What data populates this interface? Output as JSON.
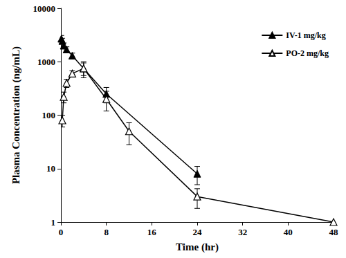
{
  "chart_data": {
    "type": "line",
    "x_label": "Time (hr)",
    "y_label": "Plasma Concentration (ng/mL)",
    "log": "y",
    "grid": false,
    "legend": "top-right",
    "xlim": [
      0,
      48
    ],
    "xticks": [
      0,
      8,
      16,
      24,
      32,
      40,
      48
    ],
    "ylim": [
      1,
      10000
    ],
    "yticks": [
      1,
      10,
      100,
      1000,
      10000
    ],
    "series": [
      {
        "name": "IV-1 mg/kg",
        "color": "#000000",
        "marker": "filled-triangle",
        "line_style": "solid",
        "x": [
          0.083,
          0.25,
          0.5,
          1,
          2,
          4,
          8,
          24
        ],
        "values": [
          2700,
          2450,
          2000,
          1700,
          1300,
          750,
          250,
          8
        ],
        "errors": [
          400,
          300,
          250,
          200,
          150,
          200,
          80,
          3
        ]
      },
      {
        "name": "PO-2 mg/kg",
        "color": "#000000",
        "marker": "open-triangle",
        "line_style": "solid",
        "x": [
          0.25,
          0.5,
          1,
          2,
          4,
          8,
          12,
          24,
          48
        ],
        "values": [
          80,
          220,
          400,
          600,
          750,
          200,
          50,
          3,
          1
        ],
        "errors": [
          20,
          50,
          70,
          80,
          250,
          80,
          22,
          1.2,
          null
        ]
      }
    ]
  }
}
